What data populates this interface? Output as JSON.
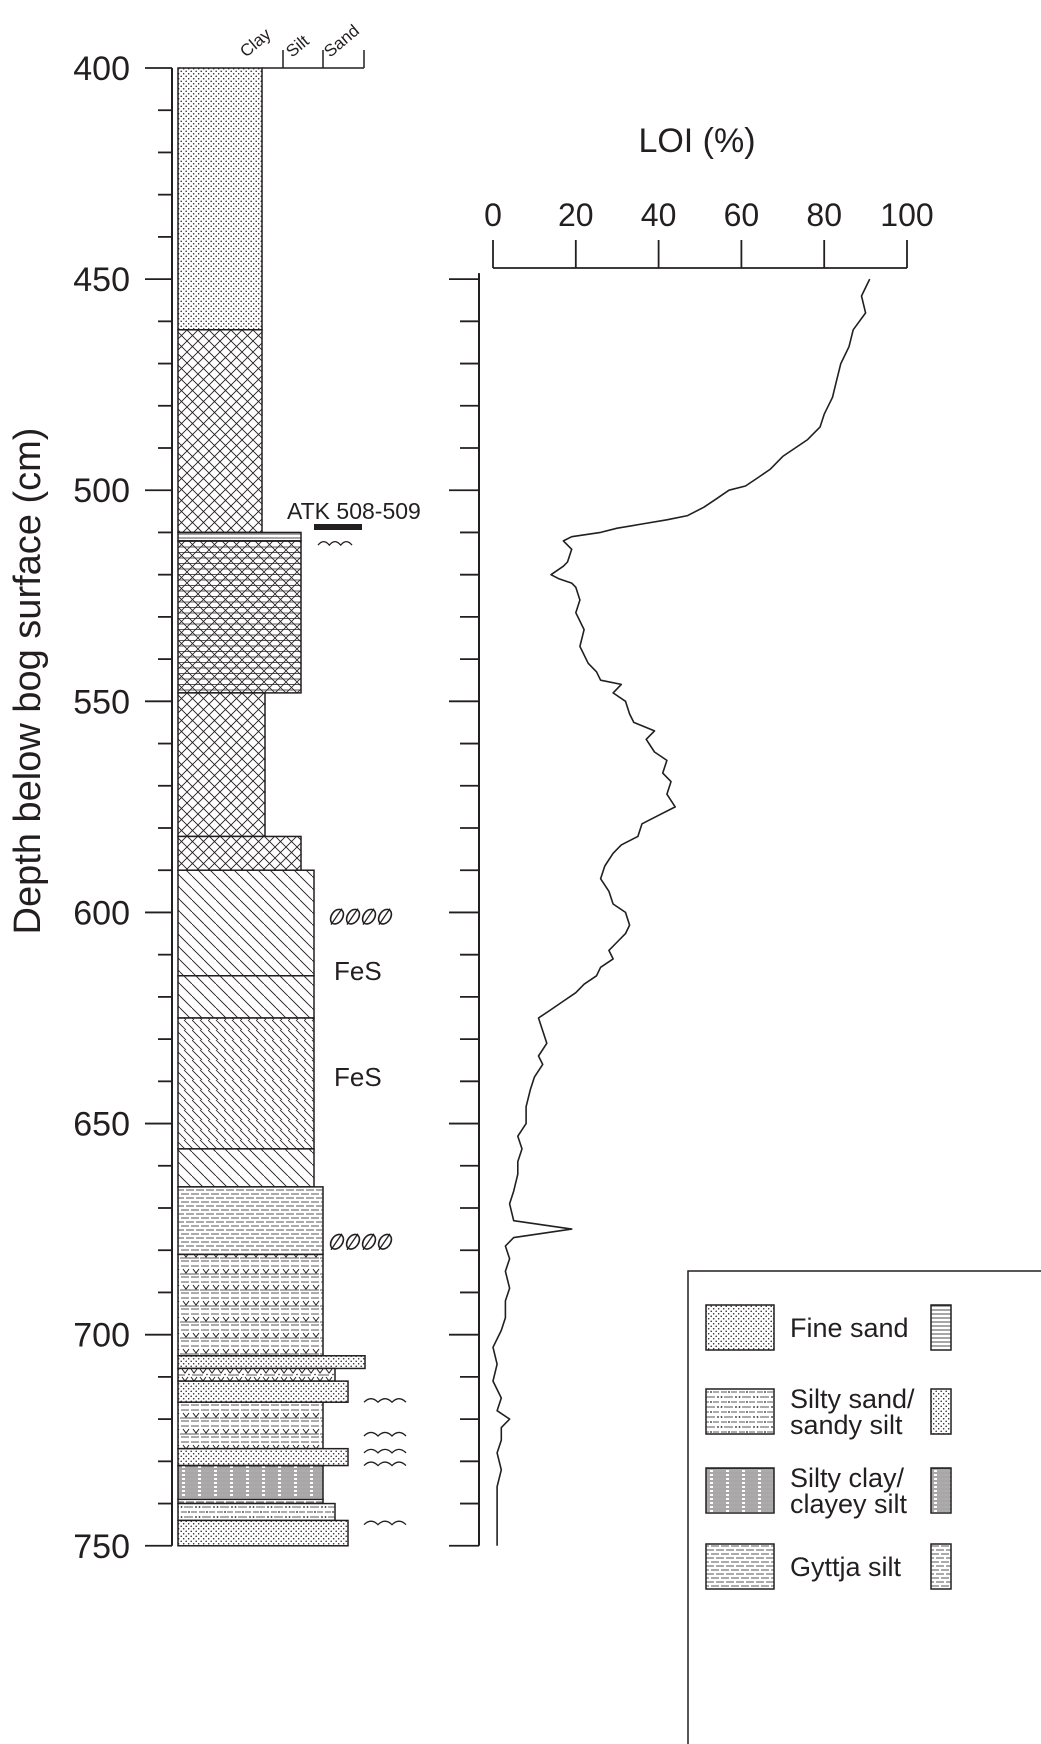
{
  "chart_data": [
    {
      "type": "lithology-column",
      "ylabel": "Depth below bog surface (cm)",
      "ylim": [
        400,
        750
      ],
      "major_ticks": [
        400,
        450,
        500,
        550,
        600,
        650,
        700,
        750
      ],
      "grain_size_labels": [
        "Clay",
        "Silt",
        "Sand"
      ],
      "layers": [
        {
          "top": 400,
          "bottom": 462,
          "pattern": "dots-fine",
          "grain": "clay"
        },
        {
          "top": 462,
          "bottom": 510,
          "pattern": "crosshatch",
          "grain": "clay"
        },
        {
          "top": 510,
          "bottom": 512,
          "pattern": "hlines",
          "grain": "clay-silt"
        },
        {
          "top": 512,
          "bottom": 548,
          "pattern": "crosshatch-hlines",
          "grain": "clay-silt"
        },
        {
          "top": 548,
          "bottom": 582,
          "pattern": "crosshatch",
          "grain": "clay+"
        },
        {
          "top": 582,
          "bottom": 590,
          "pattern": "crosshatch",
          "grain": "clay-silt"
        },
        {
          "top": 590,
          "bottom": 615,
          "pattern": "diagonal",
          "grain": "silt"
        },
        {
          "top": 615,
          "bottom": 625,
          "pattern": "diagonal",
          "grain": "silt"
        },
        {
          "top": 625,
          "bottom": 656,
          "pattern": "diagonal-dense",
          "grain": "silt"
        },
        {
          "top": 656,
          "bottom": 665,
          "pattern": "diagonal",
          "grain": "silt"
        },
        {
          "top": 665,
          "bottom": 681,
          "pattern": "gyttja",
          "grain": "silt+"
        },
        {
          "top": 681,
          "bottom": 705,
          "pattern": "gyttja-plants",
          "grain": "silt+"
        },
        {
          "top": 705,
          "bottom": 708,
          "pattern": "dots-fine",
          "grain": "sand"
        },
        {
          "top": 708,
          "bottom": 711,
          "pattern": "silty-sand-plants",
          "grain": "silt-sand"
        },
        {
          "top": 711,
          "bottom": 716,
          "pattern": "dots-fine",
          "grain": "sand-"
        },
        {
          "top": 716,
          "bottom": 727,
          "pattern": "gyttja-plants",
          "grain": "silt+"
        },
        {
          "top": 727,
          "bottom": 731,
          "pattern": "dots-fine",
          "grain": "sand-"
        },
        {
          "top": 731,
          "bottom": 739,
          "pattern": "silty-clay",
          "grain": "silt+"
        },
        {
          "top": 739,
          "bottom": 740,
          "pattern": "gyttja",
          "grain": "silt+"
        },
        {
          "top": 740,
          "bottom": 744,
          "pattern": "silty-sand",
          "grain": "silt-sand"
        },
        {
          "top": 744,
          "bottom": 750,
          "pattern": "dots-fine",
          "grain": "sand-"
        }
      ],
      "annotations": [
        {
          "text": "ATK 508-509",
          "depth": 508.5,
          "marker": "dark-bar"
        },
        {
          "text": "FeS",
          "depth": 640
        },
        {
          "text": "FeS",
          "depth": 661
        }
      ],
      "symbols": [
        {
          "name": "leaf-symbols",
          "depth": 601
        },
        {
          "name": "leaf-symbols",
          "depth": 678
        },
        {
          "name": "wave-symbols",
          "depth": 513
        },
        {
          "name": "wave-symbols",
          "depth": 716
        },
        {
          "name": "wave-symbols",
          "depth": 724
        },
        {
          "name": "wave-symbols",
          "depth": 728
        },
        {
          "name": "wave-symbols",
          "depth": 731
        },
        {
          "name": "wave-symbols",
          "depth": 745
        }
      ]
    },
    {
      "type": "line",
      "title": "LOI (%)",
      "xlim": [
        0,
        100
      ],
      "xticks": [
        0,
        20,
        40,
        60,
        80,
        100
      ],
      "ylim": [
        450,
        750
      ],
      "points": [
        [
          91,
          450
        ],
        [
          89,
          454
        ],
        [
          90,
          458
        ],
        [
          87,
          462
        ],
        [
          86,
          466
        ],
        [
          84,
          470
        ],
        [
          83,
          474
        ],
        [
          82,
          478
        ],
        [
          80,
          482
        ],
        [
          79,
          485
        ],
        [
          76,
          488
        ],
        [
          73,
          490
        ],
        [
          70,
          492
        ],
        [
          67,
          495
        ],
        [
          64,
          497
        ],
        [
          61,
          499
        ],
        [
          57,
          500
        ],
        [
          54,
          502
        ],
        [
          51,
          504
        ],
        [
          47,
          506
        ],
        [
          42,
          507
        ],
        [
          36,
          508
        ],
        [
          30,
          509
        ],
        [
          26,
          510
        ],
        [
          19,
          511
        ],
        [
          17,
          512
        ],
        [
          19,
          514
        ],
        [
          18,
          517
        ],
        [
          17,
          518
        ],
        [
          14,
          520
        ],
        [
          16,
          521
        ],
        [
          19,
          522
        ],
        [
          20,
          523
        ],
        [
          21,
          526
        ],
        [
          20,
          529
        ],
        [
          22,
          533
        ],
        [
          21,
          537
        ],
        [
          23,
          541
        ],
        [
          25,
          543
        ],
        [
          26,
          545
        ],
        [
          31,
          546
        ],
        [
          29,
          548
        ],
        [
          32,
          550
        ],
        [
          33,
          553
        ],
        [
          34,
          555
        ],
        [
          39,
          557
        ],
        [
          37,
          559
        ],
        [
          39,
          562
        ],
        [
          42,
          564
        ],
        [
          41,
          567
        ],
        [
          43,
          569
        ],
        [
          42,
          572
        ],
        [
          44,
          575
        ],
        [
          40,
          577
        ],
        [
          36,
          579
        ],
        [
          35,
          582
        ],
        [
          31,
          584
        ],
        [
          29,
          586
        ],
        [
          27,
          589
        ],
        [
          26,
          592
        ],
        [
          28,
          595
        ],
        [
          29,
          598
        ],
        [
          32,
          600
        ],
        [
          33,
          603
        ],
        [
          32,
          605
        ],
        [
          30,
          607
        ],
        [
          28,
          609
        ],
        [
          29,
          611
        ],
        [
          26,
          613
        ],
        [
          25,
          615
        ],
        [
          22,
          617
        ],
        [
          20,
          619
        ],
        [
          17,
          621
        ],
        [
          14,
          623
        ],
        [
          11,
          625
        ],
        [
          12,
          628
        ],
        [
          13,
          631
        ],
        [
          11,
          634
        ],
        [
          12,
          636
        ],
        [
          10,
          639
        ],
        [
          9,
          642
        ],
        [
          8,
          646
        ],
        [
          8,
          650
        ],
        [
          6,
          653
        ],
        [
          7,
          656
        ],
        [
          6,
          659
        ],
        [
          6,
          662
        ],
        [
          5,
          666
        ],
        [
          4,
          669
        ],
        [
          5,
          673
        ],
        [
          19,
          675
        ],
        [
          5,
          677
        ],
        [
          3,
          679
        ],
        [
          4,
          682
        ],
        [
          3,
          685
        ],
        [
          4,
          689
        ],
        [
          3,
          692
        ],
        [
          3,
          696
        ],
        [
          2,
          699
        ],
        [
          0,
          703
        ],
        [
          1,
          707
        ],
        [
          0,
          711
        ],
        [
          2,
          715
        ],
        [
          1,
          718
        ],
        [
          4,
          720
        ],
        [
          2,
          722
        ],
        [
          2,
          725
        ],
        [
          1,
          728
        ],
        [
          2,
          732
        ],
        [
          1,
          736
        ],
        [
          1,
          740
        ],
        [
          1,
          745
        ],
        [
          1,
          750
        ]
      ]
    }
  ],
  "legend": {
    "items": [
      {
        "label": "Fine sand",
        "pattern": "dots-fine"
      },
      {
        "label": "Silty sand/\nsandy silt",
        "pattern": "silty-sand"
      },
      {
        "label": "Silty clay/\nclayey silt",
        "pattern": "silty-clay"
      },
      {
        "label": "Gyttja silt",
        "pattern": "gyttja"
      }
    ]
  },
  "colors": {
    "ink": "#231f20",
    "background": "#ffffff"
  }
}
